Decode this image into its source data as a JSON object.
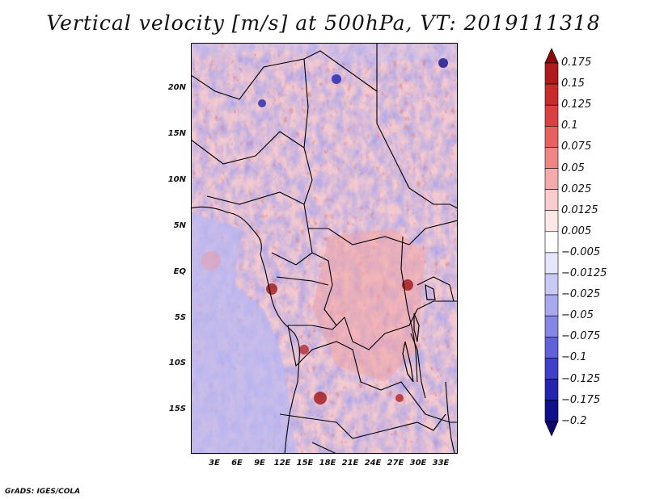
{
  "title": "Vertical velocity [m/s] at 500hPa, VT: 2019111318",
  "credit": "GrADS: IGES/COLA",
  "map": {
    "lat_ticks": [
      "20N",
      "15N",
      "10N",
      "5N",
      "EQ",
      "5S",
      "10S",
      "15S"
    ],
    "lon_ticks": [
      "3E",
      "6E",
      "9E",
      "12E",
      "15E",
      "18E",
      "21E",
      "24E",
      "27E",
      "30E",
      "33E"
    ]
  },
  "colorbar": {
    "levels": [
      "0.175",
      "0.15",
      "0.125",
      "0.1",
      "0.075",
      "0.05",
      "0.025",
      "0.0125",
      "0.005",
      "−0.005",
      "−0.0125",
      "−0.025",
      "−0.05",
      "−0.075",
      "−0.1",
      "−0.125",
      "−0.175",
      "−0.2"
    ],
    "colors": [
      "#8e0a0a",
      "#b01a1a",
      "#c92b2b",
      "#dc4141",
      "#e86060",
      "#ef8686",
      "#f5abab",
      "#f9cdcd",
      "#fde8e8",
      "#ffffff",
      "#e6e6fb",
      "#c9c9f6",
      "#a9a9ef",
      "#8585e6",
      "#6161d9",
      "#3f3fc9",
      "#2424ae",
      "#10108d",
      "#0a0a6e"
    ]
  }
}
